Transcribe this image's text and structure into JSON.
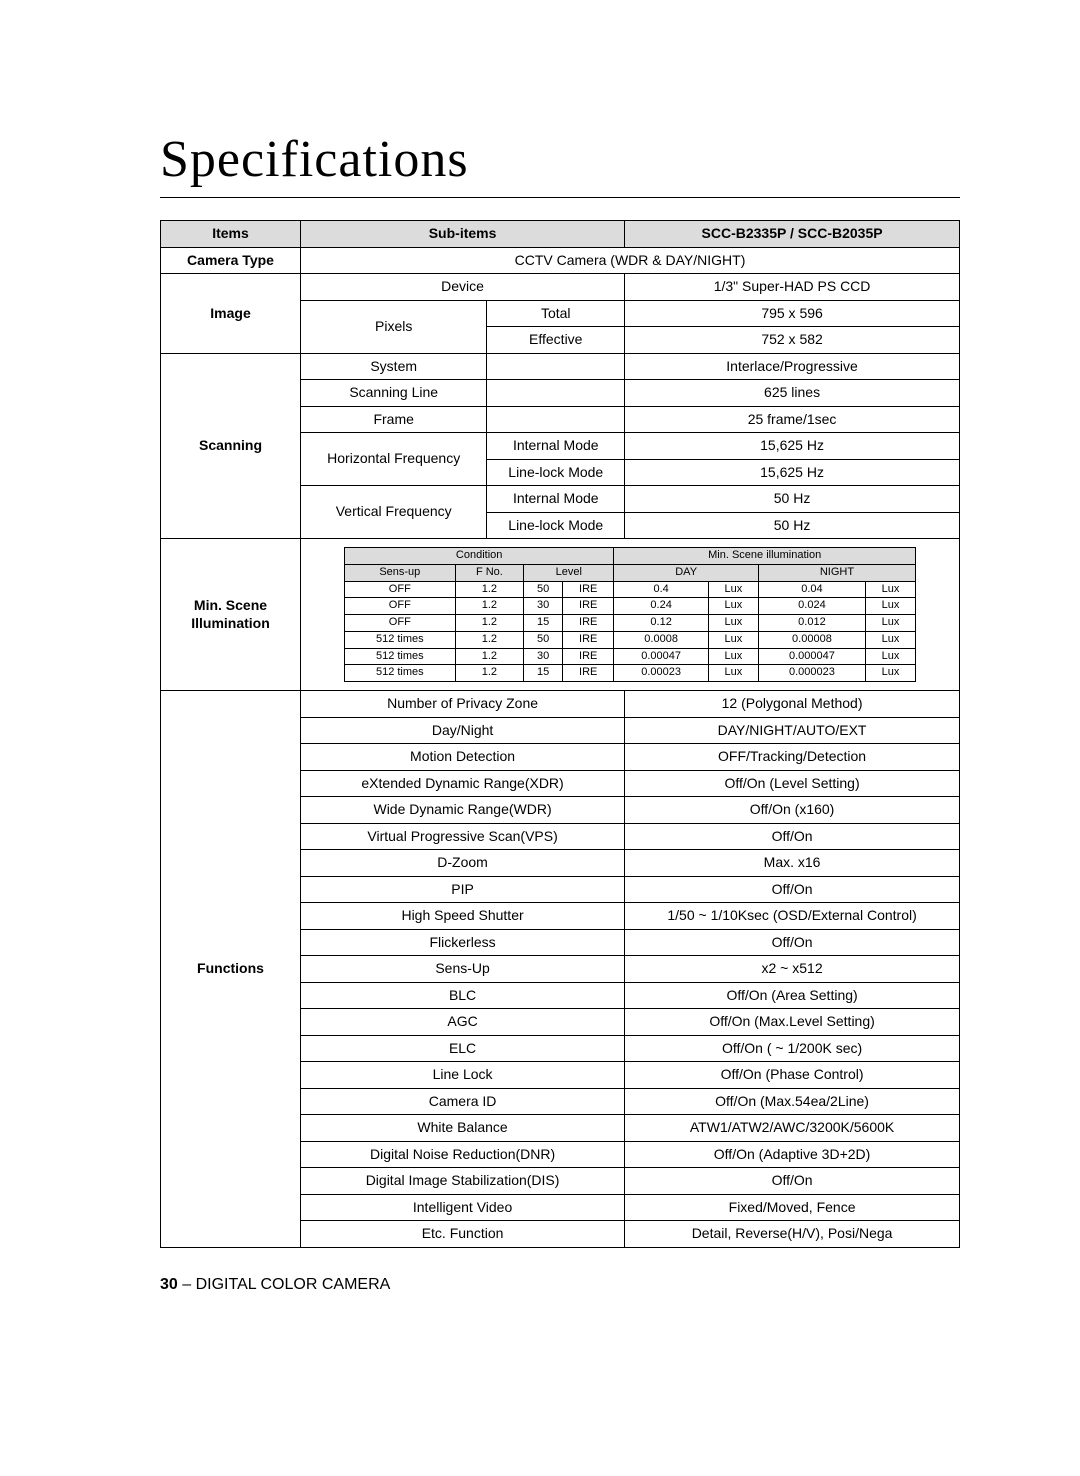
{
  "title": "Specifications",
  "header": {
    "items": "Items",
    "subitems": "Sub-items",
    "model": "SCC-B2335P / SCC-B2035P"
  },
  "camera_type": {
    "label": "Camera Type",
    "value": "CCTV Camera (WDR & DAY/NIGHT)"
  },
  "image": {
    "label": "Image",
    "device_label": "Device",
    "device_value": "1/3\" Super-HAD PS CCD",
    "pixels_label": "Pixels",
    "total_label": "Total",
    "total_value": "795 x 596",
    "eff_label": "Effective",
    "eff_value": "752 x 582"
  },
  "scanning": {
    "label": "Scanning",
    "system": {
      "label": "System",
      "value": "Interlace/Progressive"
    },
    "line": {
      "label": "Scanning Line",
      "value": "625 lines"
    },
    "frame": {
      "label": "Frame",
      "value": "25 frame/1sec"
    },
    "hfreq_label": "Horizontal Frequency",
    "vfreq_label": "Vertical Frequency",
    "internal_label": "Internal Mode",
    "linelock_label": "Line-lock Mode",
    "h_internal": "15,625 Hz",
    "h_linelock": "15,625 Hz",
    "v_internal": "50 Hz",
    "v_linelock": "50 Hz"
  },
  "minscene": {
    "label": "Min. Scene Illumination",
    "condition": "Condition",
    "msi": "Min. Scene illumination",
    "sensup": "Sens-up",
    "fno": "F No.",
    "level": "Level",
    "day": "DAY",
    "night": "NIGHT",
    "rows": [
      {
        "su": "OFF",
        "f": "1.2",
        "lv": "50",
        "ire": "IRE",
        "d": "0.4",
        "du": "Lux",
        "n": "0.04",
        "nu": "Lux"
      },
      {
        "su": "OFF",
        "f": "1.2",
        "lv": "30",
        "ire": "IRE",
        "d": "0.24",
        "du": "Lux",
        "n": "0.024",
        "nu": "Lux"
      },
      {
        "su": "OFF",
        "f": "1.2",
        "lv": "15",
        "ire": "IRE",
        "d": "0.12",
        "du": "Lux",
        "n": "0.012",
        "nu": "Lux"
      },
      {
        "su": "512 times",
        "f": "1.2",
        "lv": "50",
        "ire": "IRE",
        "d": "0.0008",
        "du": "Lux",
        "n": "0.00008",
        "nu": "Lux"
      },
      {
        "su": "512 times",
        "f": "1.2",
        "lv": "30",
        "ire": "IRE",
        "d": "0.00047",
        "du": "Lux",
        "n": "0.000047",
        "nu": "Lux"
      },
      {
        "su": "512 times",
        "f": "1.2",
        "lv": "15",
        "ire": "IRE",
        "d": "0.00023",
        "du": "Lux",
        "n": "0.000023",
        "nu": "Lux"
      }
    ]
  },
  "functions": {
    "label": "Functions",
    "rows": [
      {
        "k": "Number of Privacy Zone",
        "v": "12 (Polygonal Method)"
      },
      {
        "k": "Day/Night",
        "v": "DAY/NIGHT/AUTO/EXT"
      },
      {
        "k": "Motion Detection",
        "v": "OFF/Tracking/Detection"
      },
      {
        "k": "eXtended Dynamic Range(XDR)",
        "v": "Off/On (Level Setting)"
      },
      {
        "k": "Wide Dynamic Range(WDR)",
        "v": "Off/On (x160)"
      },
      {
        "k": "Virtual Progressive Scan(VPS)",
        "v": "Off/On"
      },
      {
        "k": "D-Zoom",
        "v": "Max. x16"
      },
      {
        "k": "PIP",
        "v": "Off/On"
      },
      {
        "k": "High Speed Shutter",
        "v": "1/50 ~ 1/10Ksec (OSD/External Control)"
      },
      {
        "k": "Flickerless",
        "v": "Off/On"
      },
      {
        "k": "Sens-Up",
        "v": "x2 ~ x512"
      },
      {
        "k": "BLC",
        "v": "Off/On (Area Setting)"
      },
      {
        "k": "AGC",
        "v": "Off/On (Max.Level Setting)"
      },
      {
        "k": "ELC",
        "v": "Off/On ( ~ 1/200K sec)"
      },
      {
        "k": "Line Lock",
        "v": "Off/On (Phase Control)"
      },
      {
        "k": "Camera ID",
        "v": "Off/On (Max.54ea/2Line)"
      },
      {
        "k": "White Balance",
        "v": "ATW1/ATW2/AWC/3200K/5600K"
      },
      {
        "k": "Digital Noise Reduction(DNR)",
        "v": "Off/On (Adaptive 3D+2D)"
      },
      {
        "k": "Digital Image Stabilization(DIS)",
        "v": "Off/On"
      },
      {
        "k": "Intelligent Video",
        "v": "Fixed/Moved, Fence"
      },
      {
        "k": "Etc. Function",
        "v": "Detail, Reverse(H/V), Posi/Nega"
      }
    ]
  },
  "footer": {
    "page": "30",
    "sep": " – ",
    "text": "DIGITAL COLOR CAMERA"
  }
}
